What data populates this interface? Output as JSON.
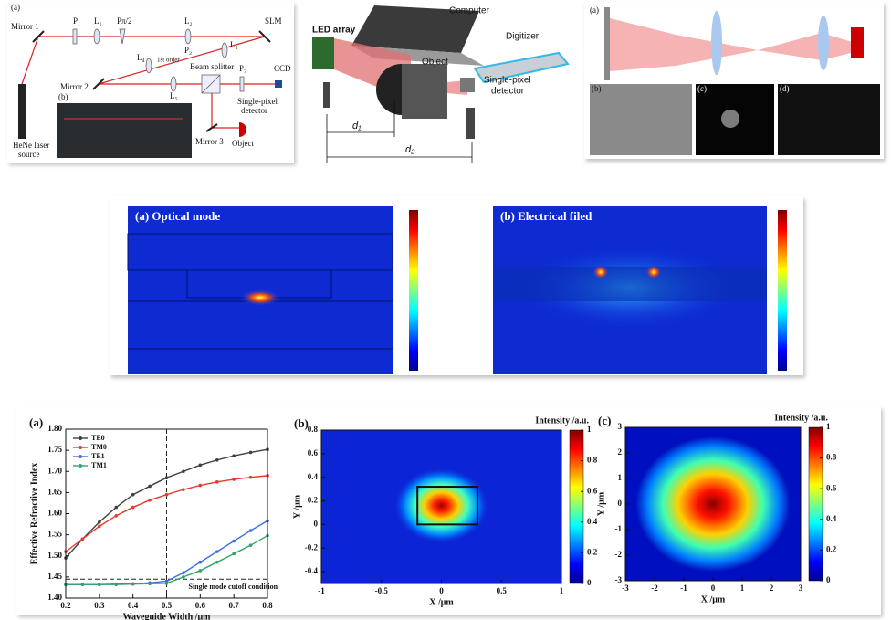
{
  "setup": {
    "panel_a": "(a)",
    "mirror_1": "Mirror 1",
    "p1": "P₁",
    "l1": "L₁",
    "p_half": "Pπ/2",
    "l2": "L₂",
    "slm": "SLM",
    "l3": "L₃",
    "p2": "P₂",
    "first_order": "1st order",
    "l4": "L₄",
    "mirror_2": "Mirror 2",
    "beam_splitter": "Beam splitter",
    "p3": "P₃",
    "ccd": "CCD",
    "l5": "L₅",
    "laser": [
      "HeNe laser",
      "source"
    ],
    "panel_b": "(b)",
    "detector": [
      "Single-pixel",
      "detector"
    ],
    "mirror_3": "Mirror 3",
    "object": "Object"
  },
  "imaging": {
    "led": "LED array",
    "computer": "Computer",
    "digitizer": "Digitizer",
    "object": "Object",
    "detector": [
      "Single-pixel",
      "detector"
    ],
    "d1": "d₁",
    "d2": "d₂"
  },
  "optics": {
    "a": "(a)",
    "b": "(b)",
    "c": "(c)",
    "d": "(d)"
  },
  "mode_sim": {
    "a": "(a) Optical mode",
    "b": "(b) Electrical filed"
  },
  "chart_data": [
    {
      "type": "line",
      "panel": "(a)",
      "xlabel": "Waveguide Width /μm",
      "ylabel": "Effective Refractive Index",
      "x": [
        0.2,
        0.25,
        0.3,
        0.35,
        0.4,
        0.45,
        0.5,
        0.55,
        0.6,
        0.65,
        0.7,
        0.75,
        0.8
      ],
      "series": [
        {
          "name": "TE0",
          "color": "#404040",
          "values": [
            1.495,
            1.54,
            1.58,
            1.615,
            1.645,
            1.665,
            1.685,
            1.7,
            1.715,
            1.727,
            1.737,
            1.745,
            1.752
          ]
        },
        {
          "name": "TM0",
          "color": "#e8392f",
          "values": [
            1.51,
            1.54,
            1.57,
            1.595,
            1.615,
            1.632,
            1.645,
            1.657,
            1.667,
            1.675,
            1.681,
            1.686,
            1.69
          ]
        },
        {
          "name": "TE1",
          "color": "#3a6fd8",
          "values": [
            1.432,
            1.432,
            1.432,
            1.433,
            1.434,
            1.436,
            1.44,
            1.46,
            1.485,
            1.51,
            1.535,
            1.56,
            1.583
          ]
        },
        {
          "name": "TM1",
          "color": "#2fa56b",
          "values": [
            1.432,
            1.432,
            1.432,
            1.432,
            1.433,
            1.434,
            1.435,
            1.45,
            1.465,
            1.485,
            1.505,
            1.525,
            1.548
          ]
        }
      ],
      "cutoff_x": 0.5,
      "cutoff_y": 1.445,
      "annotation": "Single mode cutoff condition",
      "xlim": [
        0.2,
        0.8
      ],
      "xticks": [
        0.2,
        0.3,
        0.4,
        0.5,
        0.6,
        0.7,
        0.8
      ],
      "ylim": [
        1.4,
        1.8
      ],
      "yticks": [
        {
          "value": 1.4,
          "label": "1.40"
        },
        1.45,
        {
          "value": 1.5,
          "label": "1.50"
        },
        1.55,
        {
          "value": 1.6,
          "label": "1.60"
        },
        1.65,
        {
          "value": 1.7,
          "label": "1.70"
        },
        1.75,
        {
          "value": 1.8,
          "label": "1.80"
        }
      ],
      "legend": "upper left"
    },
    {
      "type": "heatmap",
      "panel": "(b)",
      "title": "Intensity /a.u.",
      "xlabel": "X /μm",
      "ylabel": "Y /μm",
      "xlim": [
        -1,
        1
      ],
      "xticks": [
        -1,
        -0.5,
        0,
        0.5,
        1
      ],
      "ylim": [
        -0.5,
        0.8
      ],
      "yticks": [
        -0.4,
        -0.2,
        0,
        0.2,
        0.4,
        0.6,
        0.8
      ],
      "clim": [
        0,
        1
      ],
      "cticks": [
        0,
        0.2,
        0.4,
        0.6,
        0.8,
        1
      ],
      "waveguide_x": [
        -0.2,
        0.3
      ],
      "waveguide_y": [
        0,
        0.32
      ]
    },
    {
      "type": "heatmap",
      "panel": "(c)",
      "title": "Intensity /a.u.",
      "xlabel": "X /μm",
      "ylabel": "Y /μm",
      "xlim": [
        -3,
        3
      ],
      "xticks": [
        -3,
        -2,
        -1,
        0,
        1,
        2,
        3
      ],
      "ylim": [
        -3,
        3
      ],
      "yticks": [
        -3,
        -2,
        -1,
        0,
        1,
        2,
        3
      ],
      "clim": [
        0,
        1
      ],
      "cticks": [
        0,
        0.2,
        0.4,
        0.6,
        0.8,
        1
      ]
    }
  ]
}
